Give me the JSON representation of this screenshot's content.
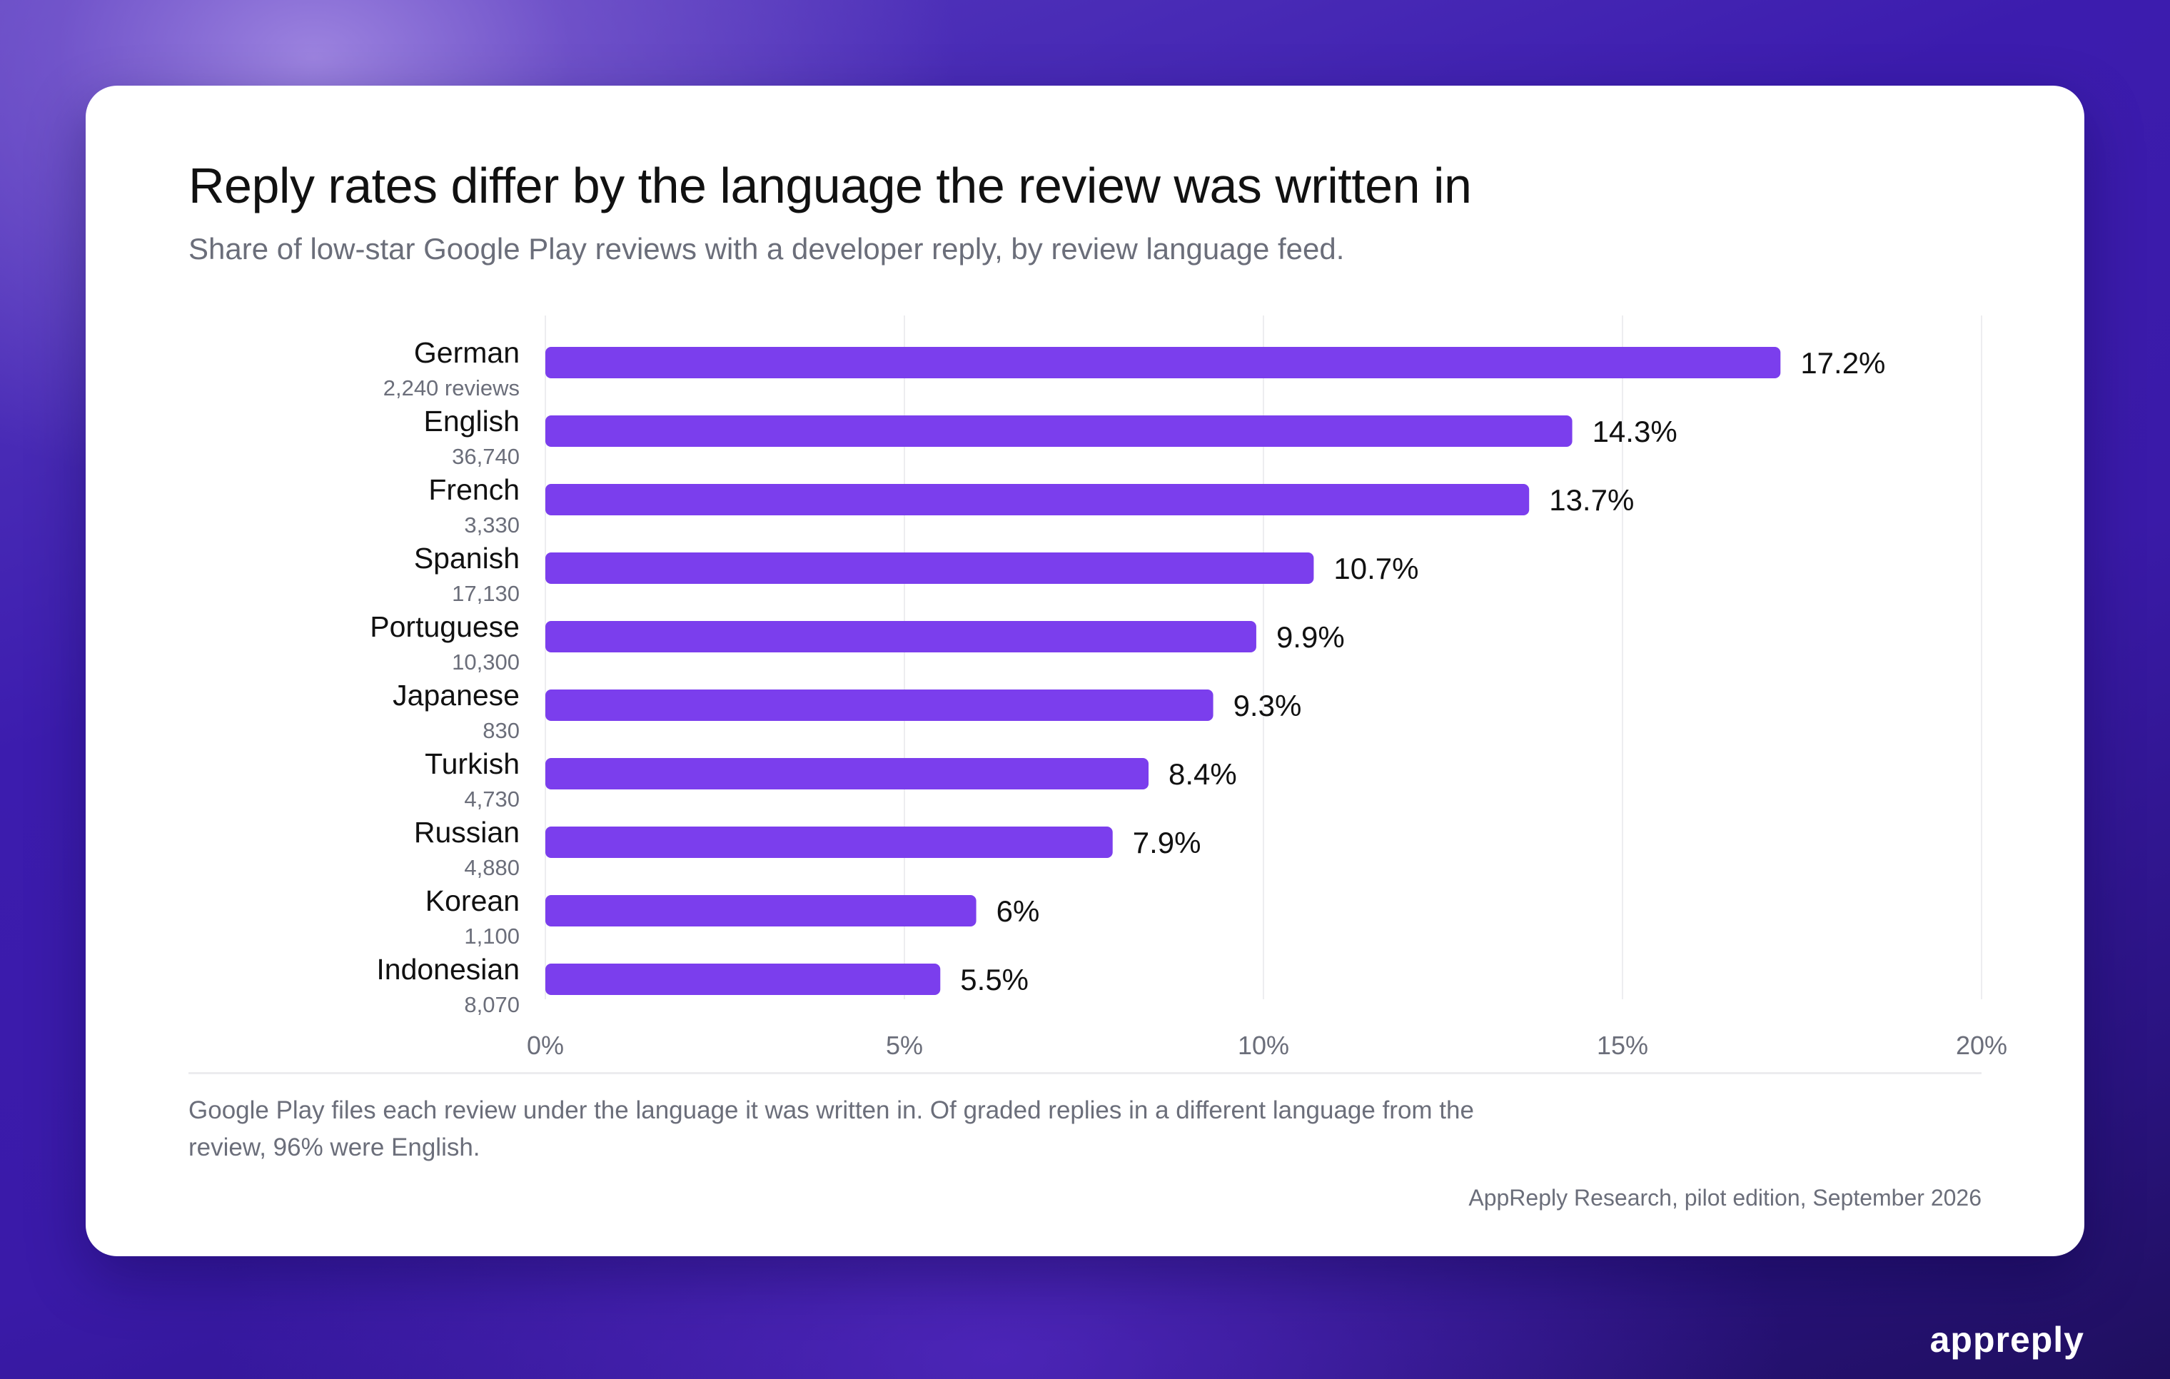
{
  "header": {
    "title": "Reply rates differ by the language the review was written in",
    "subtitle": "Share of low-star Google Play reviews with a developer reply, by review language feed."
  },
  "chart_data": {
    "type": "bar",
    "orientation": "horizontal",
    "categories": [
      "German",
      "English",
      "French",
      "Spanish",
      "Portuguese",
      "Japanese",
      "Turkish",
      "Russian",
      "Korean",
      "Indonesian"
    ],
    "sublabels": [
      "2,240 reviews",
      "36,740",
      "3,330",
      "17,130",
      "10,300",
      "830",
      "4,730",
      "4,880",
      "1,100",
      "8,070"
    ],
    "values": [
      17.2,
      14.3,
      13.7,
      10.7,
      9.9,
      9.3,
      8.4,
      7.9,
      6,
      5.5
    ],
    "value_labels": [
      "17.2%",
      "14.3%",
      "13.7%",
      "10.7%",
      "9.9%",
      "9.3%",
      "8.4%",
      "7.9%",
      "6%",
      "5.5%"
    ],
    "xlim": [
      0,
      20
    ],
    "xticks": [
      0,
      5,
      10,
      15,
      20
    ],
    "xtick_labels": [
      "0%",
      "5%",
      "10%",
      "15%",
      "20%"
    ],
    "grid": "vertical",
    "bar_color": "#7b3eed"
  },
  "footer": {
    "note": "Google Play files each review under the language it was written in. Of graded replies in a different language from the review, 96% were English.",
    "source": "AppReply Research, pilot edition, September 2026"
  },
  "brand": {
    "logo_text": "appreply"
  }
}
